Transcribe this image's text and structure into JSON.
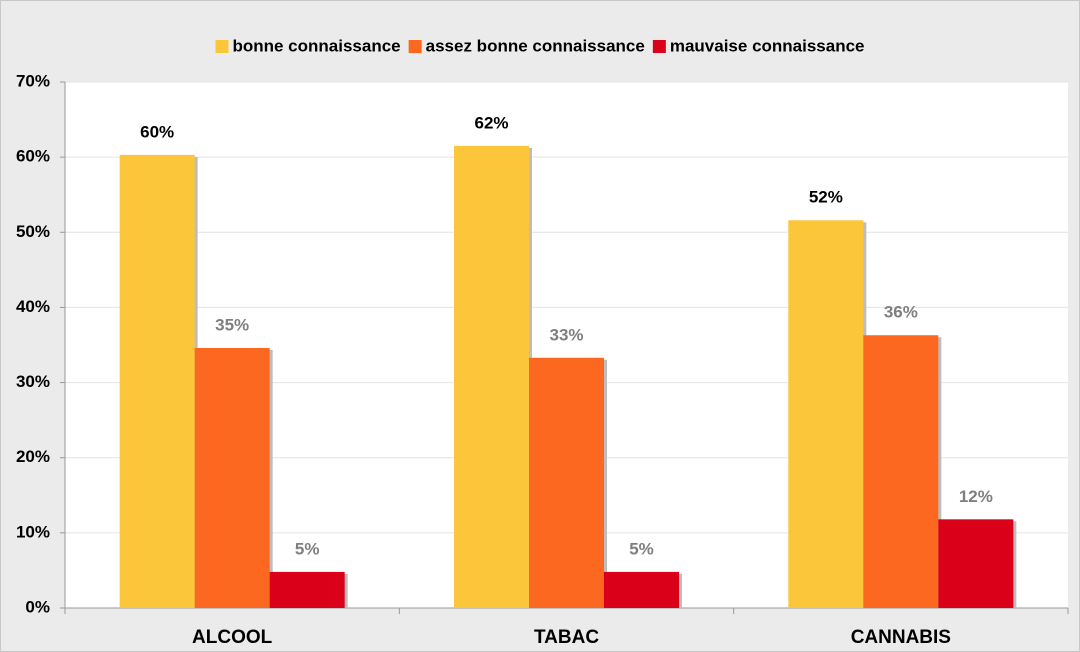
{
  "chart_data": {
    "type": "bar",
    "categories": [
      "ALCOOL",
      "TABAC",
      "CANNABIS"
    ],
    "series": [
      {
        "name": "bonne connaissance",
        "color": "#fcc63a",
        "label_color": "#000000",
        "values": [
          60.3,
          61.5,
          51.6
        ],
        "value_labels": [
          "60%",
          "62%",
          "52%"
        ]
      },
      {
        "name": "assez bonne connaissance",
        "color": "#fd6820",
        "label_color": "#7f7f7f",
        "values": [
          34.6,
          33.3,
          36.3
        ],
        "value_labels": [
          "35%",
          "33%",
          "36%"
        ]
      },
      {
        "name": "mauvaise connaissance",
        "color": "#da0019",
        "label_color": "#7f7f7f",
        "values": [
          4.8,
          4.8,
          11.8
        ],
        "value_labels": [
          "5%",
          "5%",
          "12%"
        ]
      }
    ],
    "ylim": [
      0,
      70
    ],
    "yticks": [
      {
        "value": 0,
        "label": "0%"
      },
      {
        "value": 10,
        "label": "10%"
      },
      {
        "value": 20,
        "label": "20%"
      },
      {
        "value": 30,
        "label": "30%"
      },
      {
        "value": 40,
        "label": "40%"
      },
      {
        "value": 50,
        "label": "50%"
      },
      {
        "value": 60,
        "label": "60%"
      },
      {
        "value": 70,
        "label": "70%"
      }
    ],
    "grid": true,
    "legend": "top"
  }
}
